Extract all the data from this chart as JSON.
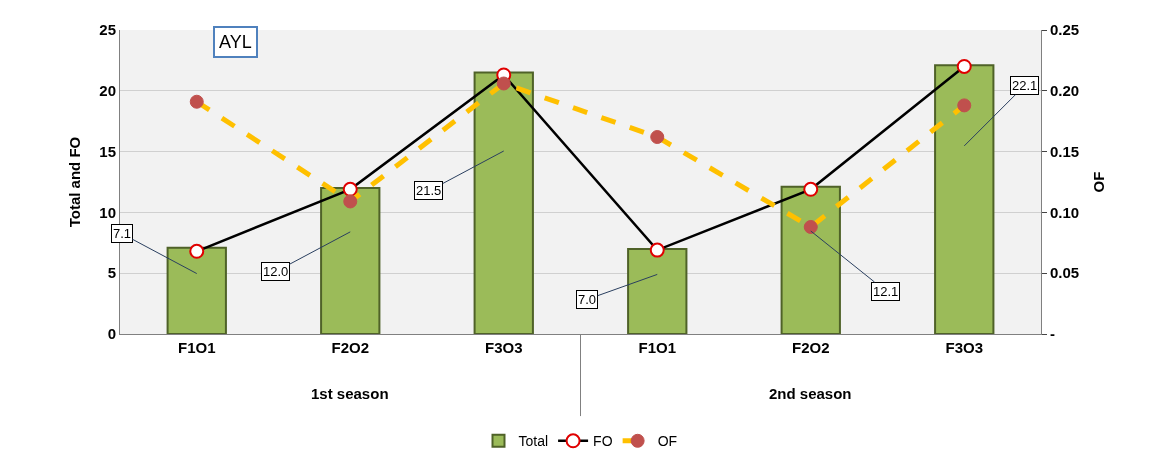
{
  "chart_data": {
    "type": "bar",
    "categories": [
      "F1O1",
      "F2O2",
      "F3O3",
      "F1O1",
      "F2O2",
      "F3O3"
    ],
    "ylabel": "Total and FO",
    "y2label": "OF",
    "ylim": [
      0,
      25
    ],
    "yticks": [
      0,
      5,
      10,
      15,
      20,
      25
    ],
    "y2lim": [
      0,
      0.25
    ],
    "y2ticks": [
      {
        "value": 0,
        "label": "-"
      },
      {
        "value": 0.05,
        "label": "0.05"
      },
      {
        "value": 0.1,
        "label": "0.10"
      },
      {
        "value": 0.15,
        "label": "0.15"
      },
      {
        "value": 0.2,
        "label": "0.20"
      },
      {
        "value": 0.25,
        "label": "0.25"
      }
    ],
    "series": [
      {
        "name": "Total",
        "color": "#9bbb59",
        "values": [
          7.1,
          12.0,
          21.5,
          7.0,
          12.1,
          22.1
        ],
        "value_labels": [
          "7.1",
          "12.0",
          "21.5",
          "7.0",
          "12.1",
          "22.1"
        ]
      },
      {
        "name": "FO",
        "type": "line",
        "color": "#000000",
        "marker": "circle",
        "line_style": "solid",
        "values": [
          6.8,
          11.9,
          21.3,
          6.9,
          11.9,
          22.0
        ]
      },
      {
        "name": "OF",
        "type": "line",
        "axis": "y2",
        "color": "#ffc000",
        "marker": "circle",
        "line_style": "dashed",
        "values": [
          0.191,
          0.109,
          0.206,
          0.162,
          0.088,
          0.188
        ]
      }
    ],
    "annotations": [
      "AYL",
      "1st season",
      "2nd season"
    ],
    "grid": "y",
    "legend": "bottom"
  }
}
